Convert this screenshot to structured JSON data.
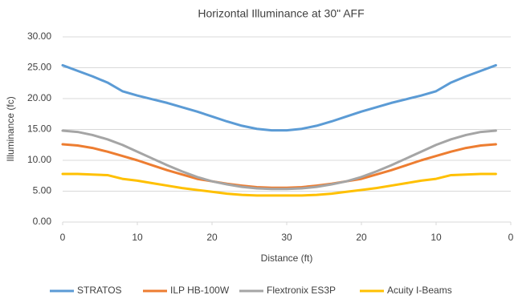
{
  "chart_data": {
    "type": "line",
    "title": "Horizontal Illuminance at 30\" AFF",
    "x_label": "Distance (ft)",
    "y_label": "Illuminance (fc)",
    "x": [
      0,
      2,
      4,
      6,
      8,
      10,
      12,
      14,
      16,
      18,
      20,
      22,
      24,
      26,
      28,
      30,
      32,
      34,
      36,
      38,
      40,
      42,
      44,
      46,
      48,
      50,
      52,
      54,
      56,
      58
    ],
    "xlim": [
      0,
      60
    ],
    "xticks": [
      0,
      10,
      20,
      30,
      {
        "value": 40,
        "label": "20"
      },
      {
        "value": 50,
        "label": "10"
      },
      {
        "value": 60,
        "label": "0"
      }
    ],
    "ylim": [
      0,
      30
    ],
    "yticks": [
      {
        "value": 0,
        "label": "0.00"
      },
      {
        "value": 5,
        "label": "5.00"
      },
      {
        "value": 10,
        "label": "10.00"
      },
      {
        "value": 15,
        "label": "15.00"
      },
      {
        "value": 20,
        "label": "20.00"
      },
      {
        "value": 25,
        "label": "25.00"
      },
      {
        "value": 30,
        "label": "30.00"
      }
    ],
    "grid": true,
    "legend": "bottom",
    "series": [
      {
        "name": "STRATOS",
        "color": "#5b9bd5",
        "values": [
          25.4,
          24.5,
          23.6,
          22.6,
          21.2,
          20.5,
          19.9,
          19.3,
          18.6,
          17.9,
          17.1,
          16.3,
          15.6,
          15.1,
          14.85,
          14.85,
          15.1,
          15.6,
          16.3,
          17.1,
          17.9,
          18.6,
          19.3,
          19.9,
          20.5,
          21.2,
          22.6,
          23.6,
          24.5,
          25.4
        ]
      },
      {
        "name": "ILP HB-100W",
        "color": "#ed7d31",
        "values": [
          12.6,
          12.4,
          12.0,
          11.4,
          10.7,
          10.0,
          9.2,
          8.4,
          7.7,
          7.0,
          6.6,
          6.2,
          5.9,
          5.65,
          5.55,
          5.55,
          5.65,
          5.9,
          6.2,
          6.6,
          7.0,
          7.7,
          8.4,
          9.2,
          10.0,
          10.7,
          11.4,
          12.0,
          12.4,
          12.6
        ]
      },
      {
        "name": "Flextronix ES3P",
        "color": "#a5a5a5",
        "values": [
          14.8,
          14.6,
          14.1,
          13.4,
          12.5,
          11.4,
          10.3,
          9.2,
          8.2,
          7.3,
          6.6,
          6.1,
          5.7,
          5.45,
          5.35,
          5.35,
          5.45,
          5.7,
          6.1,
          6.6,
          7.3,
          8.2,
          9.2,
          10.3,
          11.4,
          12.5,
          13.4,
          14.1,
          14.6,
          14.8
        ]
      },
      {
        "name": "Acuity I-Beams",
        "color": "#ffc000",
        "values": [
          7.8,
          7.8,
          7.7,
          7.6,
          7.0,
          6.7,
          6.3,
          5.9,
          5.5,
          5.2,
          4.9,
          4.6,
          4.4,
          4.3,
          4.3,
          4.3,
          4.3,
          4.4,
          4.6,
          4.9,
          5.2,
          5.5,
          5.9,
          6.3,
          6.7,
          7.0,
          7.6,
          7.7,
          7.8,
          7.8
        ]
      }
    ]
  }
}
